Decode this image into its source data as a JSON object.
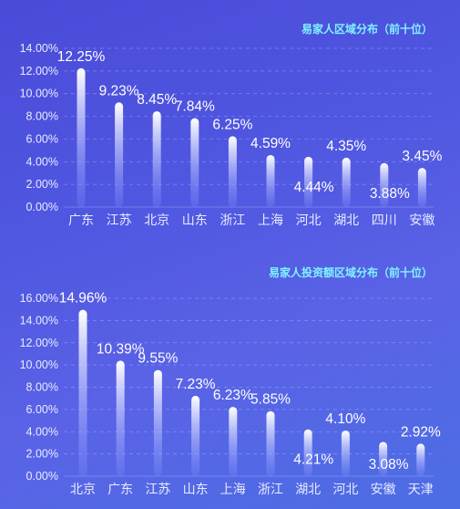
{
  "colors": {
    "title": "#7ff3ff",
    "axis_text": "#e8ecff",
    "value_text": "#ffffff",
    "grid": "#a9b2ff",
    "bar_top": "#ffffff",
    "bar_bottom": "#7f8dff"
  },
  "chart_data": [
    {
      "type": "bar",
      "title": "易家人区域分布（前十位）",
      "categories": [
        "广东",
        "江苏",
        "北京",
        "山东",
        "浙江",
        "上海",
        "河北",
        "湖北",
        "四川",
        "安徽"
      ],
      "values": [
        12.25,
        9.23,
        8.45,
        7.84,
        6.25,
        4.59,
        4.44,
        4.35,
        3.88,
        3.45
      ],
      "value_labels": [
        "12.25%",
        "9.23%",
        "8.45%",
        "7.84%",
        "6.25%",
        "4.59%",
        "4.44%",
        "4.35%",
        "3.88%",
        "3.45%"
      ],
      "ylim": [
        0,
        14
      ],
      "yticks": [
        "0.00%",
        "2.00%",
        "4.00%",
        "6.00%",
        "8.00%",
        "10.00%",
        "12.00%",
        "14.00%"
      ],
      "grid": true,
      "legend": "none"
    },
    {
      "type": "bar",
      "title": "易家人投资额区域分布（前十位）",
      "categories": [
        "北京",
        "广东",
        "江苏",
        "山东",
        "上海",
        "浙江",
        "湖北",
        "河北",
        "安徽",
        "天津"
      ],
      "values": [
        14.96,
        10.39,
        9.55,
        7.23,
        6.23,
        5.85,
        4.21,
        4.1,
        3.08,
        2.92
      ],
      "value_labels": [
        "14.96%",
        "10.39%",
        "9.55%",
        "7.23%",
        "6.23%",
        "5.85%",
        "4.21%",
        "4.10%",
        "3.08%",
        "2.92%"
      ],
      "ylim": [
        0,
        16
      ],
      "yticks": [
        "0.00%",
        "2.00%",
        "4.00%",
        "6.00%",
        "8.00%",
        "10.00%",
        "12.00%",
        "14.00%",
        "16.00%"
      ],
      "grid": true,
      "legend": "none"
    }
  ]
}
